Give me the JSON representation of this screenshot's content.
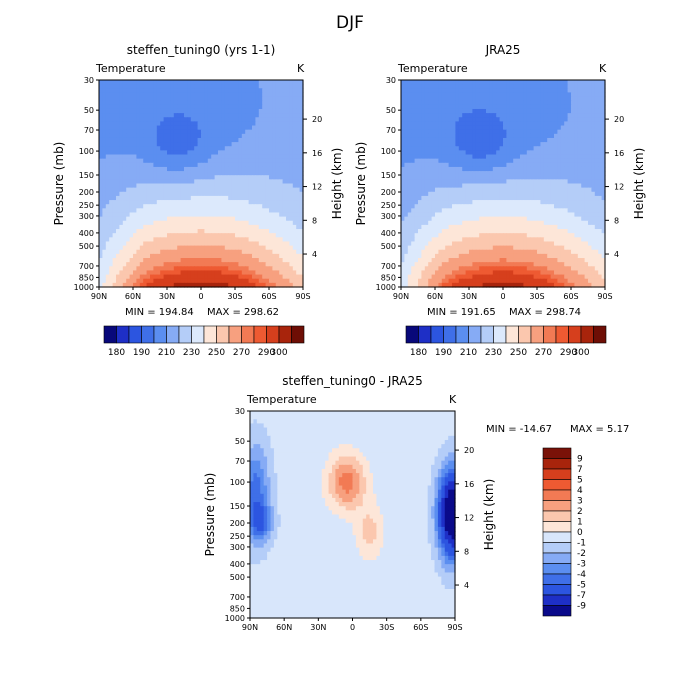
{
  "page_title": "DJF",
  "colors": {
    "model_palette": [
      "#08087a",
      "#1e2fc6",
      "#2c55e0",
      "#3f6fe8",
      "#5b8ef0",
      "#86abf5",
      "#b4cdf8",
      "#dce9fc",
      "#fde6d8",
      "#fbc7ae",
      "#f7a07f",
      "#f27a54",
      "#ee5a32",
      "#d63f1d",
      "#a8240c",
      "#6e0e05"
    ],
    "diff_palette": [
      "#0a0a8a",
      "#1e2fc6",
      "#2c55e0",
      "#3f6fe8",
      "#5b8ef0",
      "#86abf5",
      "#b4cdf8",
      "#d8e6fb",
      "#fde6d8",
      "#fbc7ae",
      "#f7a07f",
      "#f27a54",
      "#ee5a32",
      "#d63f1d",
      "#a8240c",
      "#7a1208"
    ]
  },
  "chart_data": [
    {
      "type": "heatmap",
      "title": "steffen_tuning0 (yrs 1-1)",
      "variable": "Temperature",
      "units": "K",
      "xlabel": "",
      "ylabel": "Pressure (mb)",
      "y2label": "Height (km)",
      "x_ticks": [
        "90N",
        "60N",
        "30N",
        "0",
        "30S",
        "60S",
        "90S"
      ],
      "y_ticks": [
        "30",
        "50",
        "70",
        "100",
        "150",
        "200",
        "250",
        "300",
        "400",
        "500",
        "700",
        "850",
        "1000"
      ],
      "y2_ticks": [
        "20",
        "16",
        "12",
        "8",
        "4"
      ],
      "min_label": "MIN = 194.84",
      "max_label": "MAX = 298.62",
      "min": 194.84,
      "max": 298.62,
      "colorbar_labels": [
        "180",
        "190",
        "210",
        "230",
        "250",
        "270",
        "290",
        "300"
      ],
      "levels": [
        180,
        185,
        190,
        200,
        210,
        220,
        230,
        240,
        250,
        260,
        270,
        275,
        280,
        290,
        295,
        300
      ]
    },
    {
      "type": "heatmap",
      "title": "JRA25",
      "variable": "Temperature",
      "units": "K",
      "xlabel": "",
      "ylabel": "Pressure (mb)",
      "y2label": "Height (km)",
      "x_ticks": [
        "90N",
        "60N",
        "30N",
        "0",
        "30S",
        "60S",
        "90S"
      ],
      "y_ticks": [
        "30",
        "50",
        "70",
        "100",
        "150",
        "200",
        "250",
        "300",
        "400",
        "500",
        "700",
        "850",
        "1000"
      ],
      "y2_ticks": [
        "20",
        "16",
        "12",
        "8",
        "4"
      ],
      "min_label": "MIN = 191.65",
      "max_label": "MAX = 298.74",
      "min": 191.65,
      "max": 298.74,
      "colorbar_labels": [
        "180",
        "190",
        "210",
        "230",
        "250",
        "270",
        "290",
        "300"
      ],
      "levels": [
        180,
        185,
        190,
        200,
        210,
        220,
        230,
        240,
        250,
        260,
        270,
        275,
        280,
        290,
        295,
        300
      ]
    },
    {
      "type": "heatmap",
      "title": "steffen_tuning0 - JRA25",
      "variable": "Temperature",
      "units": "K",
      "xlabel": "",
      "ylabel": "Pressure (mb)",
      "y2label": "Height (km)",
      "x_ticks": [
        "90N",
        "60N",
        "30N",
        "0",
        "30S",
        "60S",
        "90S"
      ],
      "y_ticks": [
        "30",
        "50",
        "70",
        "100",
        "150",
        "200",
        "250",
        "300",
        "400",
        "500",
        "700",
        "850",
        "1000"
      ],
      "y2_ticks": [
        "20",
        "16",
        "12",
        "8",
        "4"
      ],
      "min_label": "MIN = -14.67",
      "max_label": "MAX =    5.17",
      "min": -14.67,
      "max": 5.17,
      "colorbar_labels": [
        "9",
        "7",
        "5",
        "4",
        "3",
        "2",
        "1",
        "0",
        "-1",
        "-2",
        "-3",
        "-4",
        "-5",
        "-7",
        "-9"
      ]
    }
  ]
}
